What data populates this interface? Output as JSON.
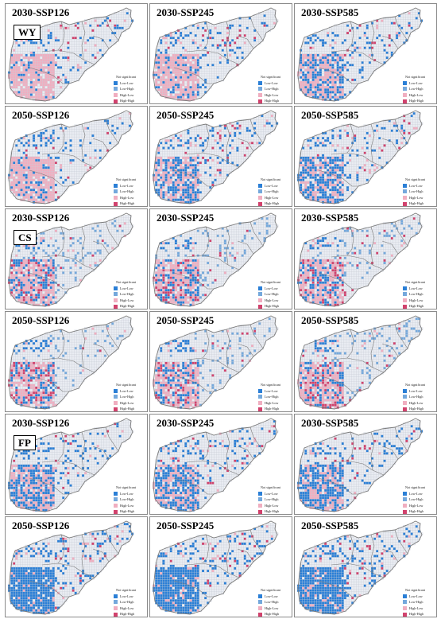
{
  "colors": {
    "not_significant": "#e9ecf2",
    "low_low": "#2b7fd6",
    "low_high": "#74a8dc",
    "high_low": "#f0aec0",
    "high_high": "#d1426d",
    "boundary": "#7a7a7a",
    "grid": "#c7ccd6"
  },
  "legend_labels": [
    "Not significant",
    "Low-Low",
    "Low-High",
    "High-Low",
    "High-High"
  ],
  "groups": [
    {
      "indicator": "WY",
      "panels": [
        {
          "title": "2030-SSP126",
          "pattern": {
            "sw_high": 0.78,
            "sw_low": 0.12,
            "east_low": 0.08,
            "east_high": 0.05
          }
        },
        {
          "title": "2030-SSP245",
          "pattern": {
            "sw_high": 0.72,
            "sw_low": 0.18,
            "east_low": 0.08,
            "east_high": 0.05
          }
        },
        {
          "title": "2030-SSP585",
          "pattern": {
            "sw_high": 0.45,
            "sw_low": 0.45,
            "east_low": 0.1,
            "east_high": 0.06
          }
        },
        {
          "title": "2050-SSP126",
          "pattern": {
            "sw_high": 0.75,
            "sw_low": 0.15,
            "east_low": 0.08,
            "east_high": 0.05
          }
        },
        {
          "title": "2050-SSP245",
          "pattern": {
            "sw_high": 0.4,
            "sw_low": 0.45,
            "east_low": 0.1,
            "east_high": 0.06
          }
        },
        {
          "title": "2050-SSP585",
          "pattern": {
            "sw_high": 0.35,
            "sw_low": 0.5,
            "east_low": 0.1,
            "east_high": 0.06
          }
        }
      ]
    },
    {
      "indicator": "CS",
      "panels": [
        {
          "title": "2030-SSP126",
          "pattern": {
            "sw_high": 0.45,
            "sw_low": 0.4,
            "east_low": 0.1,
            "east_high": 0.03
          }
        },
        {
          "title": "2030-SSP245",
          "pattern": {
            "sw_high": 0.45,
            "sw_low": 0.4,
            "east_low": 0.1,
            "east_high": 0.03
          }
        },
        {
          "title": "2030-SSP585",
          "pattern": {
            "sw_high": 0.45,
            "sw_low": 0.4,
            "east_low": 0.1,
            "east_high": 0.03
          }
        },
        {
          "title": "2050-SSP126",
          "pattern": {
            "sw_high": 0.42,
            "sw_low": 0.42,
            "east_low": 0.1,
            "east_high": 0.03
          }
        },
        {
          "title": "2050-SSP245",
          "pattern": {
            "sw_high": 0.42,
            "sw_low": 0.42,
            "east_low": 0.1,
            "east_high": 0.03
          }
        },
        {
          "title": "2050-SSP585",
          "pattern": {
            "sw_high": 0.42,
            "sw_low": 0.42,
            "east_low": 0.1,
            "east_high": 0.03
          }
        }
      ]
    },
    {
      "indicator": "FP",
      "panels": [
        {
          "title": "2030-SSP126",
          "pattern": {
            "sw_high": 0.35,
            "sw_low": 0.55,
            "east_low": 0.1,
            "east_high": 0.05
          }
        },
        {
          "title": "2030-SSP245",
          "pattern": {
            "sw_high": 0.35,
            "sw_low": 0.55,
            "east_low": 0.1,
            "east_high": 0.05
          }
        },
        {
          "title": "2030-SSP585",
          "pattern": {
            "sw_high": 0.35,
            "sw_low": 0.55,
            "east_low": 0.1,
            "east_high": 0.05
          }
        },
        {
          "title": "2050-SSP126",
          "pattern": {
            "sw_high": 0.1,
            "sw_low": 0.85,
            "east_low": 0.12,
            "east_high": 0.05
          }
        },
        {
          "title": "2050-SSP245",
          "pattern": {
            "sw_high": 0.1,
            "sw_low": 0.85,
            "east_low": 0.12,
            "east_high": 0.05
          }
        },
        {
          "title": "2050-SSP585",
          "pattern": {
            "sw_high": 0.1,
            "sw_low": 0.85,
            "east_low": 0.12,
            "east_high": 0.05
          }
        }
      ]
    }
  ]
}
